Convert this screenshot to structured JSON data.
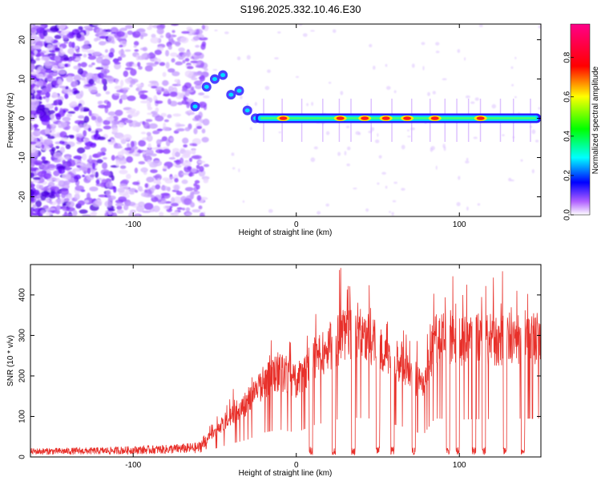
{
  "title": "S196.2025.332.10.46.E30",
  "chart_data": [
    {
      "type": "heatmap",
      "name": "spectrogram",
      "xlabel": "Height of straight line (km)",
      "ylabel": "Frequency (Hz)",
      "xlim": [
        -163,
        150
      ],
      "ylim": [
        -25,
        24
      ],
      "xticks": [
        -100,
        0,
        100
      ],
      "yticks": [
        -20,
        -10,
        0,
        10,
        20
      ],
      "colorbar": {
        "label": "Normalized spectral amplitude",
        "range": [
          0,
          0.97
        ],
        "ticks": [
          "0.0",
          "0.2",
          "0.4",
          "0.6",
          "0.8"
        ],
        "tick_values": [
          0.0,
          0.2,
          0.4,
          0.6,
          0.8
        ],
        "colors": [
          "#ffffff",
          "#7a00ff",
          "#0000ff",
          "#00ffff",
          "#00ff00",
          "#ffff00",
          "#ff0000",
          "#ff0088"
        ]
      },
      "noise_region_x": [
        -163,
        -65
      ],
      "rising_tone": [
        {
          "x": -62,
          "y": 3
        },
        {
          "x": -55,
          "y": 8
        },
        {
          "x": -50,
          "y": 10
        },
        {
          "x": -45,
          "y": 11
        },
        {
          "x": -40,
          "y": 6
        },
        {
          "x": -35,
          "y": 7
        },
        {
          "x": -30,
          "y": 2
        },
        {
          "x": -25,
          "y": 0
        }
      ],
      "signal_line_y": 0,
      "signal_line_x": [
        -25,
        150
      ],
      "hotspots_x": [
        -8,
        27,
        42,
        55,
        68,
        85,
        113
      ]
    },
    {
      "type": "line",
      "name": "snr",
      "xlabel": "Height of straight line (km)",
      "ylabel": "SNR (10 * v/v)",
      "xlim": [
        -163,
        150
      ],
      "ylim": [
        0,
        475
      ],
      "xticks": [
        -100,
        0,
        100
      ],
      "yticks": [
        0,
        100,
        200,
        300,
        400
      ],
      "color": "#e8302a",
      "envelope": [
        {
          "x": -163,
          "y": 18
        },
        {
          "x": -120,
          "y": 20
        },
        {
          "x": -80,
          "y": 25
        },
        {
          "x": -60,
          "y": 30
        },
        {
          "x": -50,
          "y": 80
        },
        {
          "x": -40,
          "y": 130
        },
        {
          "x": -30,
          "y": 170
        },
        {
          "x": -20,
          "y": 240
        },
        {
          "x": -10,
          "y": 270
        },
        {
          "x": 0,
          "y": 240
        },
        {
          "x": 10,
          "y": 310
        },
        {
          "x": 20,
          "y": 350
        },
        {
          "x": 30,
          "y": 390
        },
        {
          "x": 45,
          "y": 380
        },
        {
          "x": 55,
          "y": 340
        },
        {
          "x": 65,
          "y": 300
        },
        {
          "x": 72,
          "y": 260
        },
        {
          "x": 78,
          "y": 220
        },
        {
          "x": 85,
          "y": 380
        },
        {
          "x": 100,
          "y": 370
        },
        {
          "x": 120,
          "y": 375
        },
        {
          "x": 150,
          "y": 380
        }
      ],
      "dropouts_x": [
        9,
        23,
        35,
        50,
        59,
        72,
        93,
        99,
        109,
        115,
        128,
        139
      ]
    }
  ]
}
